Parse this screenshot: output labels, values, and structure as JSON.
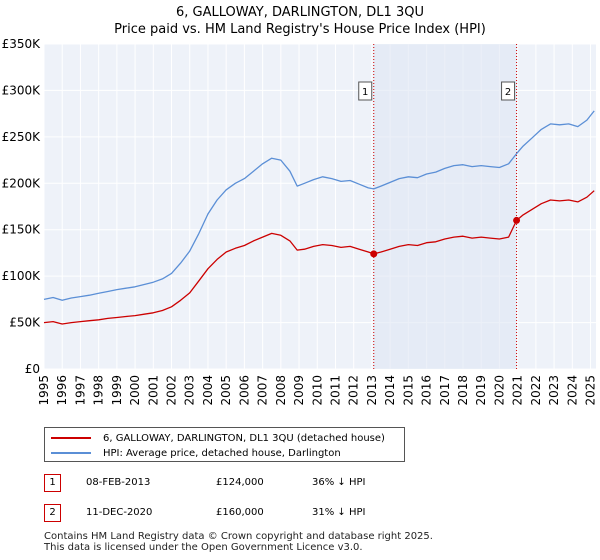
{
  "chart_data": {
    "type": "line",
    "title": "6, GALLOWAY, DARLINGTON, DL1 3QU",
    "subtitle": "Price paid vs. HM Land Registry's House Price Index (HPI)",
    "xlim": [
      1995,
      2025.3
    ],
    "ylim": [
      0,
      350000
    ],
    "y_ticks": [
      {
        "value": 0,
        "label": "£0"
      },
      {
        "value": 50000,
        "label": "£50K"
      },
      {
        "value": 100000,
        "label": "£100K"
      },
      {
        "value": 150000,
        "label": "£150K"
      },
      {
        "value": 200000,
        "label": "£200K"
      },
      {
        "value": 250000,
        "label": "£250K"
      },
      {
        "value": 300000,
        "label": "£300K"
      },
      {
        "value": 350000,
        "label": "£350K"
      }
    ],
    "x_ticks": [
      "1995",
      "1996",
      "1997",
      "1998",
      "1999",
      "2000",
      "2001",
      "2002",
      "2003",
      "2004",
      "2005",
      "2006",
      "2007",
      "2008",
      "2009",
      "2010",
      "2011",
      "2012",
      "2013",
      "2014",
      "2015",
      "2016",
      "2017",
      "2018",
      "2019",
      "2020",
      "2021",
      "2022",
      "2023",
      "2024",
      "2025"
    ],
    "grid": true,
    "background": "#eef2f9",
    "series": [
      {
        "name": "6, GALLOWAY, DARLINGTON, DL1 3QU (detached house)",
        "color": "#cc0000",
        "points": [
          [
            1995.0,
            50000
          ],
          [
            1995.5,
            51000
          ],
          [
            1996.0,
            48500
          ],
          [
            1996.5,
            50000
          ],
          [
            1997.0,
            51000
          ],
          [
            1997.5,
            52000
          ],
          [
            1998.0,
            53000
          ],
          [
            1998.5,
            54500
          ],
          [
            1999.0,
            55500
          ],
          [
            1999.5,
            56500
          ],
          [
            2000.0,
            57500
          ],
          [
            2000.5,
            59000
          ],
          [
            2001.0,
            60500
          ],
          [
            2001.5,
            63000
          ],
          [
            2002.0,
            67000
          ],
          [
            2002.5,
            74000
          ],
          [
            2003.0,
            82000
          ],
          [
            2003.5,
            95000
          ],
          [
            2004.0,
            108000
          ],
          [
            2004.5,
            118000
          ],
          [
            2005.0,
            126000
          ],
          [
            2005.5,
            130000
          ],
          [
            2006.0,
            133000
          ],
          [
            2006.5,
            138000
          ],
          [
            2007.0,
            142000
          ],
          [
            2007.5,
            146000
          ],
          [
            2008.0,
            144000
          ],
          [
            2008.5,
            138000
          ],
          [
            2008.9,
            128000
          ],
          [
            2009.3,
            129000
          ],
          [
            2009.8,
            132000
          ],
          [
            2010.3,
            134000
          ],
          [
            2010.8,
            133000
          ],
          [
            2011.3,
            131000
          ],
          [
            2011.8,
            132000
          ],
          [
            2012.3,
            129000
          ],
          [
            2012.8,
            126000
          ],
          [
            2013.1,
            124000
          ],
          [
            2013.5,
            126000
          ],
          [
            2014.0,
            129000
          ],
          [
            2014.5,
            132000
          ],
          [
            2015.0,
            134000
          ],
          [
            2015.5,
            133000
          ],
          [
            2016.0,
            136000
          ],
          [
            2016.5,
            137000
          ],
          [
            2017.0,
            140000
          ],
          [
            2017.5,
            142000
          ],
          [
            2018.0,
            143000
          ],
          [
            2018.5,
            141000
          ],
          [
            2019.0,
            142000
          ],
          [
            2019.5,
            141000
          ],
          [
            2020.0,
            140000
          ],
          [
            2020.5,
            142000
          ],
          [
            2020.94,
            160000
          ],
          [
            2021.3,
            166000
          ],
          [
            2021.8,
            172000
          ],
          [
            2022.3,
            178000
          ],
          [
            2022.8,
            182000
          ],
          [
            2023.3,
            181000
          ],
          [
            2023.8,
            182000
          ],
          [
            2024.3,
            180000
          ],
          [
            2024.8,
            185000
          ],
          [
            2025.2,
            192000
          ]
        ]
      },
      {
        "name": "HPI: Average price, detached house, Darlington",
        "color": "#5b8fd6",
        "points": [
          [
            1995.0,
            75000
          ],
          [
            1995.5,
            77000
          ],
          [
            1996.0,
            74000
          ],
          [
            1996.5,
            76500
          ],
          [
            1997.0,
            78000
          ],
          [
            1997.5,
            79500
          ],
          [
            1998.0,
            81500
          ],
          [
            1998.5,
            83500
          ],
          [
            1999.0,
            85500
          ],
          [
            1999.5,
            87000
          ],
          [
            2000.0,
            88500
          ],
          [
            2000.5,
            91000
          ],
          [
            2001.0,
            93500
          ],
          [
            2001.5,
            97000
          ],
          [
            2002.0,
            103000
          ],
          [
            2002.5,
            114000
          ],
          [
            2003.0,
            127000
          ],
          [
            2003.5,
            146000
          ],
          [
            2004.0,
            167000
          ],
          [
            2004.5,
            182000
          ],
          [
            2005.0,
            193000
          ],
          [
            2005.5,
            200000
          ],
          [
            2006.0,
            205000
          ],
          [
            2006.5,
            213000
          ],
          [
            2007.0,
            221000
          ],
          [
            2007.5,
            227000
          ],
          [
            2008.0,
            225000
          ],
          [
            2008.5,
            213000
          ],
          [
            2008.9,
            197000
          ],
          [
            2009.3,
            200000
          ],
          [
            2009.8,
            204000
          ],
          [
            2010.3,
            207000
          ],
          [
            2010.8,
            205000
          ],
          [
            2011.3,
            202000
          ],
          [
            2011.8,
            203000
          ],
          [
            2012.3,
            199000
          ],
          [
            2012.8,
            195000
          ],
          [
            2013.1,
            194000
          ],
          [
            2013.5,
            197000
          ],
          [
            2014.0,
            201000
          ],
          [
            2014.5,
            205000
          ],
          [
            2015.0,
            207000
          ],
          [
            2015.5,
            206000
          ],
          [
            2016.0,
            210000
          ],
          [
            2016.5,
            212000
          ],
          [
            2017.0,
            216000
          ],
          [
            2017.5,
            219000
          ],
          [
            2018.0,
            220000
          ],
          [
            2018.5,
            218000
          ],
          [
            2019.0,
            219000
          ],
          [
            2019.5,
            218000
          ],
          [
            2020.0,
            217000
          ],
          [
            2020.5,
            221000
          ],
          [
            2020.94,
            232000
          ],
          [
            2021.3,
            240000
          ],
          [
            2021.8,
            249000
          ],
          [
            2022.3,
            258000
          ],
          [
            2022.8,
            264000
          ],
          [
            2023.3,
            263000
          ],
          [
            2023.8,
            264000
          ],
          [
            2024.3,
            261000
          ],
          [
            2024.8,
            268000
          ],
          [
            2025.2,
            278000
          ]
        ]
      }
    ],
    "annotations": [
      {
        "label": "1",
        "x": 2013.1,
        "y": 124000
      },
      {
        "label": "2",
        "x": 2020.94,
        "y": 160000
      }
    ]
  },
  "legend": {
    "property_label": "6, GALLOWAY, DARLINGTON, DL1 3QU (detached house)",
    "hpi_label": "HPI: Average price, detached house, Darlington"
  },
  "sales": [
    {
      "num": "1",
      "date": "08-FEB-2013",
      "price": "£124,000",
      "hpi_diff": "36% ↓ HPI"
    },
    {
      "num": "2",
      "date": "11-DEC-2020",
      "price": "£160,000",
      "hpi_diff": "31% ↓ HPI"
    }
  ],
  "footer": {
    "line1": "Contains HM Land Registry data © Crown copyright and database right 2025.",
    "line2": "This data is licensed under the Open Government Licence v3.0."
  }
}
